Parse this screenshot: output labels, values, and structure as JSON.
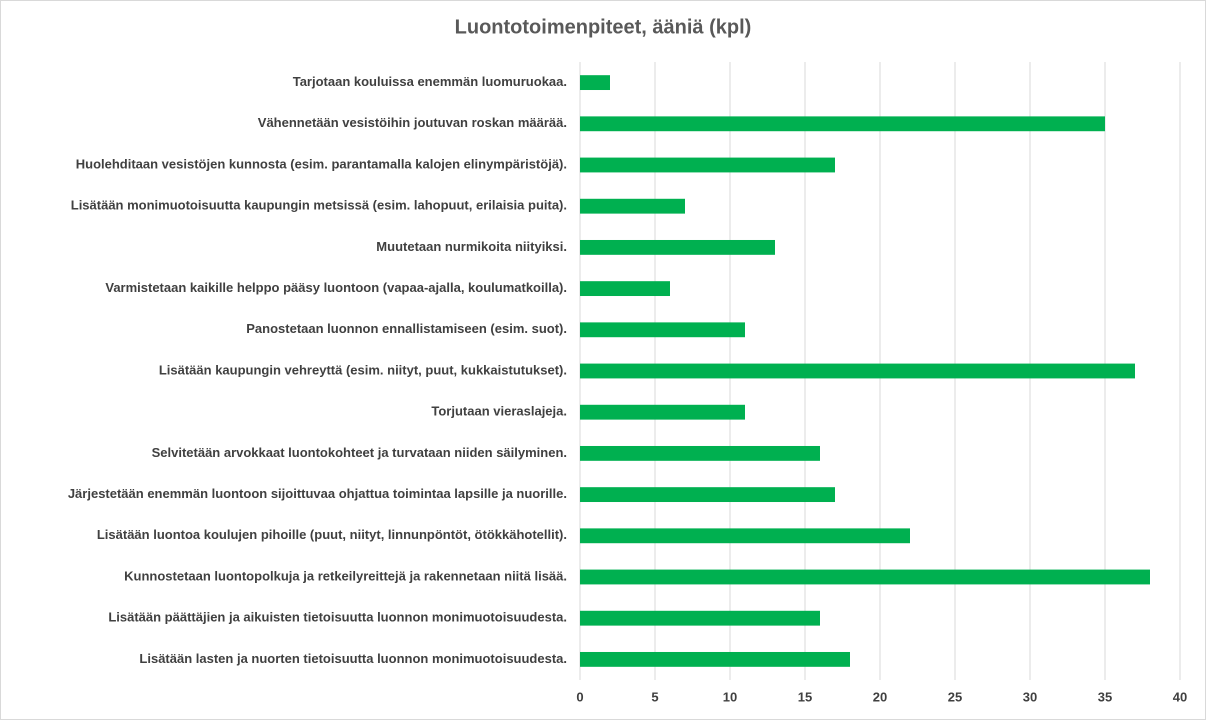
{
  "chart_data": {
    "type": "bar",
    "orientation": "horizontal",
    "title": "Luontotoimenpiteet, ääniä (kpl)",
    "categories": [
      "Tarjotaan kouluissa enemmän luomuruokaa.",
      "Vähennetään vesistöihin joutuvan roskan määrää.",
      "Huolehditaan vesistöjen kunnosta (esim. parantamalla kalojen elinympäristöjä).",
      "Lisätään monimuotoisuutta kaupungin metsissä (esim. lahopuut, erilaisia puita).",
      "Muutetaan nurmikoita niityiksi.",
      "Varmistetaan kaikille helppo pääsy luontoon (vapaa-ajalla, koulumatkoilla).",
      "Panostetaan luonnon ennallistamiseen (esim. suot).",
      "Lisätään kaupungin vehreyttä (esim. niityt, puut, kukkaistutukset).",
      "Torjutaan vieraslajeja.",
      "Selvitetään arvokkaat luontokohteet ja turvataan niiden säilyminen.",
      "Järjestetään enemmän luontoon sijoittuvaa ohjattua toimintaa lapsille ja nuorille.",
      "Lisätään luontoa koulujen pihoille (puut, niityt, linnunpöntöt, ötökkähotellit).",
      "Kunnostetaan luontopolkuja ja retkeilyreittejä ja rakennetaan niitä lisää.",
      "Lisätään päättäjien ja aikuisten tietoisuutta luonnon monimuotoisuudesta.",
      "Lisätään lasten ja nuorten tietoisuutta luonnon monimuotoisuudesta."
    ],
    "values": [
      2,
      35,
      17,
      7,
      13,
      6,
      11,
      37,
      11,
      16,
      17,
      22,
      38,
      16,
      18
    ],
    "color": "#00b050",
    "xlim": [
      0,
      40
    ],
    "xticks": [
      0,
      5,
      10,
      15,
      20,
      25,
      30,
      35,
      40
    ],
    "grid": true
  }
}
